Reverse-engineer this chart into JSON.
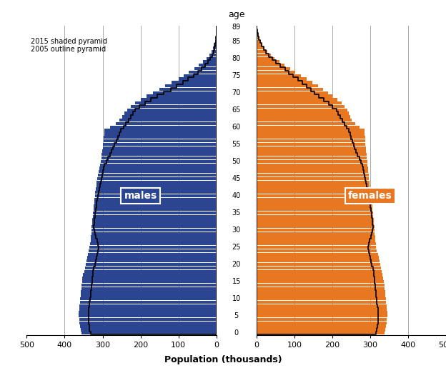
{
  "ages": [
    0,
    1,
    2,
    3,
    4,
    5,
    6,
    7,
    8,
    9,
    10,
    11,
    12,
    13,
    14,
    15,
    16,
    17,
    18,
    19,
    20,
    21,
    22,
    23,
    24,
    25,
    26,
    27,
    28,
    29,
    30,
    31,
    32,
    33,
    34,
    35,
    36,
    37,
    38,
    39,
    40,
    41,
    42,
    43,
    44,
    45,
    46,
    47,
    48,
    49,
    50,
    51,
    52,
    53,
    54,
    55,
    56,
    57,
    58,
    59,
    60,
    61,
    62,
    63,
    64,
    65,
    66,
    67,
    68,
    69,
    70,
    71,
    72,
    73,
    74,
    75,
    76,
    77,
    78,
    79,
    80,
    81,
    82,
    83,
    84,
    85,
    86,
    87,
    88,
    89
  ],
  "males_2015": [
    356,
    358,
    360,
    361,
    362,
    363,
    363,
    362,
    361,
    360,
    359,
    358,
    357,
    356,
    355,
    354,
    353,
    351,
    349,
    347,
    344,
    342,
    340,
    338,
    336,
    334,
    333,
    332,
    331,
    330,
    330,
    329,
    328,
    327,
    326,
    325,
    324,
    323,
    322,
    321,
    320,
    319,
    318,
    317,
    316,
    315,
    313,
    311,
    309,
    307,
    305,
    303,
    302,
    301,
    300,
    299,
    298,
    297,
    296,
    295,
    280,
    265,
    255,
    248,
    242,
    235,
    225,
    215,
    200,
    185,
    168,
    150,
    135,
    118,
    100,
    86,
    72,
    58,
    46,
    35,
    26,
    19,
    13,
    9,
    6,
    4,
    2,
    1,
    1,
    0
  ],
  "females_2015": [
    338,
    340,
    342,
    343,
    344,
    345,
    345,
    344,
    343,
    342,
    341,
    340,
    339,
    338,
    337,
    336,
    335,
    333,
    331,
    329,
    326,
    324,
    322,
    320,
    318,
    316,
    315,
    314,
    313,
    312,
    312,
    311,
    310,
    309,
    308,
    307,
    306,
    305,
    304,
    303,
    302,
    301,
    300,
    299,
    298,
    297,
    296,
    295,
    294,
    293,
    292,
    291,
    290,
    289,
    288,
    287,
    287,
    287,
    286,
    285,
    272,
    260,
    252,
    248,
    244,
    240,
    233,
    225,
    213,
    200,
    188,
    175,
    162,
    148,
    132,
    118,
    103,
    89,
    74,
    60,
    48,
    38,
    29,
    22,
    16,
    11,
    7,
    5,
    3,
    2
  ],
  "males_2005": [
    332,
    334,
    335,
    336,
    337,
    337,
    337,
    336,
    335,
    334,
    333,
    332,
    331,
    330,
    329,
    328,
    327,
    326,
    325,
    323,
    320,
    318,
    316,
    314,
    312,
    311,
    312,
    315,
    318,
    320,
    322,
    323,
    322,
    321,
    320,
    319,
    318,
    317,
    316,
    315,
    313,
    311,
    309,
    307,
    305,
    303,
    301,
    299,
    297,
    295,
    290,
    285,
    280,
    276,
    272,
    268,
    264,
    260,
    256,
    252,
    245,
    238,
    232,
    226,
    220,
    214,
    202,
    188,
    172,
    155,
    138,
    120,
    104,
    88,
    74,
    60,
    48,
    38,
    29,
    22,
    16,
    11,
    7,
    5,
    3,
    2,
    1,
    0,
    0,
    0
  ],
  "females_2005": [
    316,
    318,
    319,
    320,
    321,
    321,
    321,
    320,
    319,
    318,
    317,
    316,
    315,
    314,
    313,
    312,
    311,
    310,
    309,
    307,
    304,
    302,
    300,
    298,
    296,
    295,
    296,
    299,
    302,
    304,
    306,
    307,
    306,
    305,
    304,
    303,
    302,
    301,
    300,
    299,
    297,
    295,
    293,
    291,
    289,
    287,
    285,
    283,
    281,
    279,
    275,
    271,
    267,
    263,
    259,
    256,
    253,
    250,
    247,
    244,
    238,
    232,
    226,
    221,
    216,
    211,
    201,
    190,
    178,
    165,
    154,
    143,
    132,
    121,
    109,
    97,
    86,
    75,
    63,
    52,
    42,
    33,
    25,
    19,
    14,
    10,
    6,
    4,
    2,
    1
  ],
  "male_color": "#2B4590",
  "female_color": "#E87722",
  "outline_color": "#000000",
  "title": "age",
  "xlabel": "Population (thousands)",
  "male_label": "males",
  "female_label": "females",
  "xlim": 500,
  "annotation": "2015 shaded pyramid\n2005 outline pyramid",
  "bar_height": 0.9,
  "gridline_color": "#aaaaaa"
}
